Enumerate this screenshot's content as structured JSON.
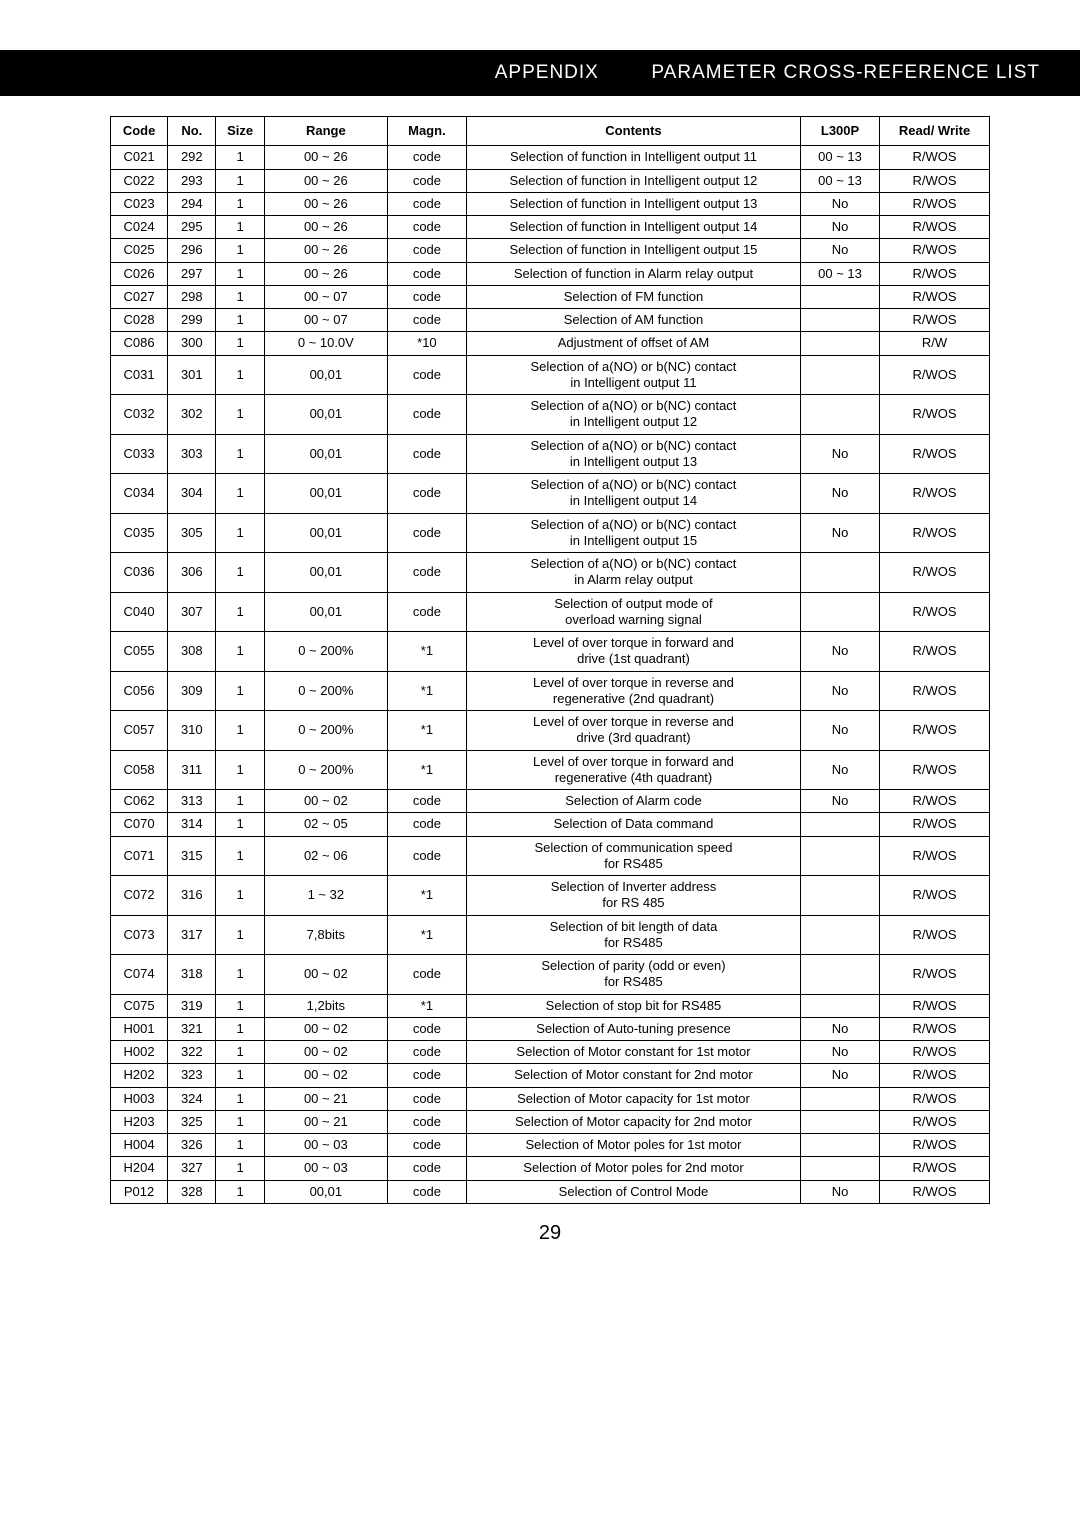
{
  "header": {
    "appendix": "APPENDIX",
    "title": "PARAMETER CROSS-REFERENCE LIST"
  },
  "columns": [
    "Code",
    "No.",
    "Size",
    "Range",
    "Magn.",
    "Contents",
    "L300P",
    "Read/\nWrite"
  ],
  "page_number": "29",
  "rows": [
    [
      "C021",
      "292",
      "1",
      "00 ~ 26",
      "code",
      "Selection of function in Intelligent output 11",
      "00 ~ 13",
      "R/WOS"
    ],
    [
      "C022",
      "293",
      "1",
      "00 ~ 26",
      "code",
      "Selection of function in Intelligent output 12",
      "00 ~ 13",
      "R/WOS"
    ],
    [
      "C023",
      "294",
      "1",
      "00 ~ 26",
      "code",
      "Selection of function in Intelligent output 13",
      "No",
      "R/WOS"
    ],
    [
      "C024",
      "295",
      "1",
      "00 ~ 26",
      "code",
      "Selection of function in Intelligent output 14",
      "No",
      "R/WOS"
    ],
    [
      "C025",
      "296",
      "1",
      "00 ~ 26",
      "code",
      "Selection of function in Intelligent output 15",
      "No",
      "R/WOS"
    ],
    [
      "C026",
      "297",
      "1",
      "00 ~ 26",
      "code",
      "Selection of function in Alarm relay output",
      "00 ~ 13",
      "R/WOS"
    ],
    [
      "C027",
      "298",
      "1",
      "00 ~ 07",
      "code",
      "Selection of FM function",
      "",
      "R/WOS"
    ],
    [
      "C028",
      "299",
      "1",
      "00 ~ 07",
      "code",
      "Selection of AM function",
      "",
      "R/WOS"
    ],
    [
      "C086",
      "300",
      "1",
      "0 ~ 10.0V",
      "*10",
      "Adjustment of offset of AM",
      "",
      "R/W"
    ],
    [
      "C031",
      "301",
      "1",
      "00,01",
      "code",
      "Selection of a(NO) or b(NC) contact\nin Intelligent output 11",
      "",
      "R/WOS"
    ],
    [
      "C032",
      "302",
      "1",
      "00,01",
      "code",
      "Selection of a(NO) or b(NC) contact\nin Intelligent output 12",
      "",
      "R/WOS"
    ],
    [
      "C033",
      "303",
      "1",
      "00,01",
      "code",
      "Selection of a(NO) or b(NC) contact\nin Intelligent output 13",
      "No",
      "R/WOS"
    ],
    [
      "C034",
      "304",
      "1",
      "00,01",
      "code",
      "Selection of a(NO) or b(NC) contact\nin Intelligent output 14",
      "No",
      "R/WOS"
    ],
    [
      "C035",
      "305",
      "1",
      "00,01",
      "code",
      "Selection of a(NO) or b(NC) contact\nin Intelligent output 15",
      "No",
      "R/WOS"
    ],
    [
      "C036",
      "306",
      "1",
      "00,01",
      "code",
      "Selection of a(NO) or b(NC) contact\nin Alarm relay output",
      "",
      "R/WOS"
    ],
    [
      "C040",
      "307",
      "1",
      "00,01",
      "code",
      "Selection of output mode of\noverload warning signal",
      "",
      "R/WOS"
    ],
    [
      "C055",
      "308",
      "1",
      "0 ~ 200%",
      "*1",
      "Level of over torque in forward and\ndrive (1st quadrant)",
      "No",
      "R/WOS"
    ],
    [
      "C056",
      "309",
      "1",
      "0 ~ 200%",
      "*1",
      "Level of over torque in reverse and\nregenerative (2nd quadrant)",
      "No",
      "R/WOS"
    ],
    [
      "C057",
      "310",
      "1",
      "0 ~ 200%",
      "*1",
      "Level of over torque in reverse and\ndrive (3rd quadrant)",
      "No",
      "R/WOS"
    ],
    [
      "C058",
      "311",
      "1",
      "0 ~ 200%",
      "*1",
      "Level of over torque in forward and\nregenerative (4th quadrant)",
      "No",
      "R/WOS"
    ],
    [
      "C062",
      "313",
      "1",
      "00 ~ 02",
      "code",
      "Selection of Alarm code",
      "No",
      "R/WOS"
    ],
    [
      "C070",
      "314",
      "1",
      "02 ~ 05",
      "code",
      "Selection of Data command",
      "",
      "R/WOS"
    ],
    [
      "C071",
      "315",
      "1",
      "02 ~ 06",
      "code",
      "Selection of communication speed\nfor RS485",
      "",
      "R/WOS"
    ],
    [
      "C072",
      "316",
      "1",
      "1 ~ 32",
      "*1",
      "Selection of Inverter address\nfor RS 485",
      "",
      "R/WOS"
    ],
    [
      "C073",
      "317",
      "1",
      "7,8bits",
      "*1",
      "Selection of bit length of data\nfor RS485",
      "",
      "R/WOS"
    ],
    [
      "C074",
      "318",
      "1",
      "00 ~ 02",
      "code",
      "Selection of parity (odd or even)\nfor RS485",
      "",
      "R/WOS"
    ],
    [
      "C075",
      "319",
      "1",
      "1,2bits",
      "*1",
      "Selection of stop bit for RS485",
      "",
      "R/WOS"
    ],
    [
      "H001",
      "321",
      "1",
      "00 ~ 02",
      "code",
      "Selection of Auto-tuning presence",
      "No",
      "R/WOS"
    ],
    [
      "H002",
      "322",
      "1",
      "00 ~ 02",
      "code",
      "Selection of Motor constant for 1st motor",
      "No",
      "R/WOS"
    ],
    [
      "H202",
      "323",
      "1",
      "00 ~ 02",
      "code",
      "Selection of Motor constant for 2nd motor",
      "No",
      "R/WOS"
    ],
    [
      "H003",
      "324",
      "1",
      "00 ~ 21",
      "code",
      "Selection of Motor capacity for 1st motor",
      "",
      "R/WOS"
    ],
    [
      "H203",
      "325",
      "1",
      "00 ~ 21",
      "code",
      "Selection of Motor capacity for 2nd motor",
      "",
      "R/WOS"
    ],
    [
      "H004",
      "326",
      "1",
      "00 ~ 03",
      "code",
      "Selection of Motor poles for 1st motor",
      "",
      "R/WOS"
    ],
    [
      "H204",
      "327",
      "1",
      "00 ~ 03",
      "code",
      "Selection of Motor poles for 2nd motor",
      "",
      "R/WOS"
    ],
    [
      "P012",
      "328",
      "1",
      "00,01",
      "code",
      "Selection of Control Mode",
      "No",
      "R/WOS"
    ]
  ]
}
